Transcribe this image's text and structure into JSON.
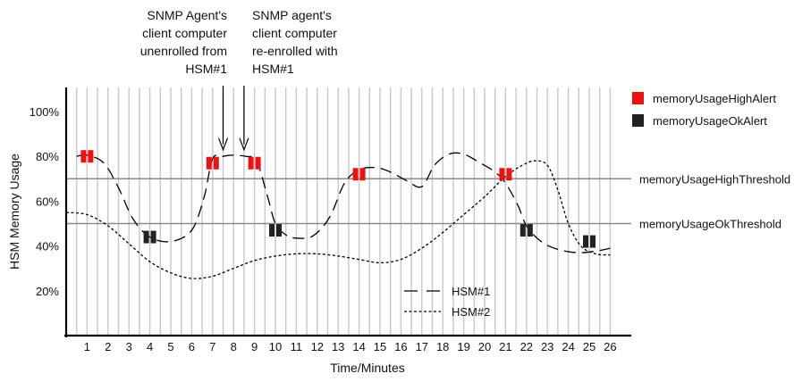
{
  "chart_data": {
    "type": "line",
    "xlabel": "Time/Minutes",
    "ylabel": "HSM Memory Usage",
    "xlim": [
      0,
      26.3
    ],
    "ylim": [
      0,
      110
    ],
    "x_ticks": [
      "1",
      "2",
      "3",
      "4",
      "5",
      "6",
      "7",
      "8",
      "9",
      "10",
      "11",
      "12",
      "13",
      "14",
      "15",
      "16",
      "17",
      "18",
      "19",
      "20",
      "21",
      "22",
      "23",
      "24",
      "25",
      "26"
    ],
    "y_ticks": [
      {
        "value": 20,
        "label": "20%"
      },
      {
        "value": 40,
        "label": "40%"
      },
      {
        "value": 60,
        "label": "60%"
      },
      {
        "value": 80,
        "label": "80%"
      },
      {
        "value": 100,
        "label": "100%"
      }
    ],
    "thresholds": [
      {
        "name": "memoryUsageHighThreshold",
        "value": 70
      },
      {
        "name": "memoryUsageOkThreshold",
        "value": 50
      }
    ],
    "series": [
      {
        "name": "HSM#1",
        "style": "long-dash",
        "points": [
          [
            0.5,
            80
          ],
          [
            1,
            80.5
          ],
          [
            1.8,
            77
          ],
          [
            2.5,
            66
          ],
          [
            3.2,
            52
          ],
          [
            4,
            44
          ],
          [
            5,
            42
          ],
          [
            6,
            47
          ],
          [
            6.6,
            62
          ],
          [
            7,
            79
          ],
          [
            7.5,
            80
          ],
          [
            7.9,
            80.5
          ],
          [
            8.6,
            80
          ],
          [
            9.1,
            78
          ],
          [
            9.6,
            63
          ],
          [
            10,
            50
          ],
          [
            10.5,
            45
          ],
          [
            11,
            43.5
          ],
          [
            11.8,
            44.5
          ],
          [
            12.6,
            53
          ],
          [
            13.3,
            68
          ],
          [
            14,
            74
          ],
          [
            14.8,
            75
          ],
          [
            15.5,
            73
          ],
          [
            16.3,
            69
          ],
          [
            17,
            66.5
          ],
          [
            17.6,
            76
          ],
          [
            18.3,
            81
          ],
          [
            19,
            81
          ],
          [
            19.8,
            77
          ],
          [
            20.5,
            73
          ],
          [
            21,
            68
          ],
          [
            21.6,
            58
          ],
          [
            22,
            49
          ],
          [
            22.7,
            42
          ],
          [
            23.5,
            38.5
          ],
          [
            24.5,
            37
          ],
          [
            25.5,
            38
          ],
          [
            26,
            39
          ]
        ]
      },
      {
        "name": "HSM#2",
        "style": "short-dash",
        "points": [
          [
            0,
            55
          ],
          [
            1,
            54
          ],
          [
            2,
            49
          ],
          [
            3,
            41
          ],
          [
            4,
            33
          ],
          [
            5,
            28
          ],
          [
            6,
            25.5
          ],
          [
            7,
            26.5
          ],
          [
            8,
            30
          ],
          [
            9,
            33.5
          ],
          [
            10,
            35.5
          ],
          [
            11,
            36.5
          ],
          [
            12,
            36.5
          ],
          [
            13,
            35.5
          ],
          [
            14,
            34
          ],
          [
            15,
            32.5
          ],
          [
            16,
            34
          ],
          [
            17,
            39
          ],
          [
            18,
            46
          ],
          [
            19,
            54
          ],
          [
            20,
            62
          ],
          [
            21,
            71
          ],
          [
            21.8,
            76
          ],
          [
            22.4,
            78
          ],
          [
            23,
            76
          ],
          [
            23.5,
            65
          ],
          [
            24,
            50
          ],
          [
            24.6,
            40
          ],
          [
            25.3,
            36.5
          ],
          [
            26,
            36
          ]
        ]
      }
    ],
    "markers": [
      {
        "type": "memoryUsageHighAlert",
        "x": 1,
        "y": 80
      },
      {
        "type": "memoryUsageHighAlert",
        "x": 7,
        "y": 77
      },
      {
        "type": "memoryUsageHighAlert",
        "x": 9,
        "y": 77
      },
      {
        "type": "memoryUsageHighAlert",
        "x": 14,
        "y": 72
      },
      {
        "type": "memoryUsageHighAlert",
        "x": 21,
        "y": 72
      },
      {
        "type": "memoryUsageOkAlert",
        "x": 4,
        "y": 44
      },
      {
        "type": "memoryUsageOkAlert",
        "x": 10,
        "y": 47
      },
      {
        "type": "memoryUsageOkAlert",
        "x": 22,
        "y": 47
      },
      {
        "type": "memoryUsageOkAlert",
        "x": 25,
        "y": 42
      }
    ],
    "legend": [
      {
        "name": "memoryUsageHighAlert",
        "color": "#ee1111"
      },
      {
        "name": "memoryUsageOkAlert",
        "color": "#222222"
      }
    ],
    "line_legend": [
      {
        "name": "HSM#1",
        "style": "long-dash"
      },
      {
        "name": "HSM#2",
        "style": "short-dash"
      }
    ],
    "annotations": [
      {
        "id": "unenrolled",
        "lines": [
          "SNMP Agent's",
          "client computer",
          "unenrolled from",
          "HSM#1"
        ],
        "arrow_x": 7.5,
        "arrow_y": 83
      },
      {
        "id": "reenrolled",
        "lines": [
          "SNMP agent's",
          "client computer",
          "re-enrolled with",
          "HSM#1"
        ],
        "arrow_x": 8.5,
        "arrow_y": 83
      }
    ],
    "colors": {
      "grid": "#c8c8c8",
      "threshold": "#8a8a8a",
      "axis": "#000000",
      "high_alert": "#ee1111",
      "ok_alert": "#222222",
      "line": "#000000"
    }
  }
}
